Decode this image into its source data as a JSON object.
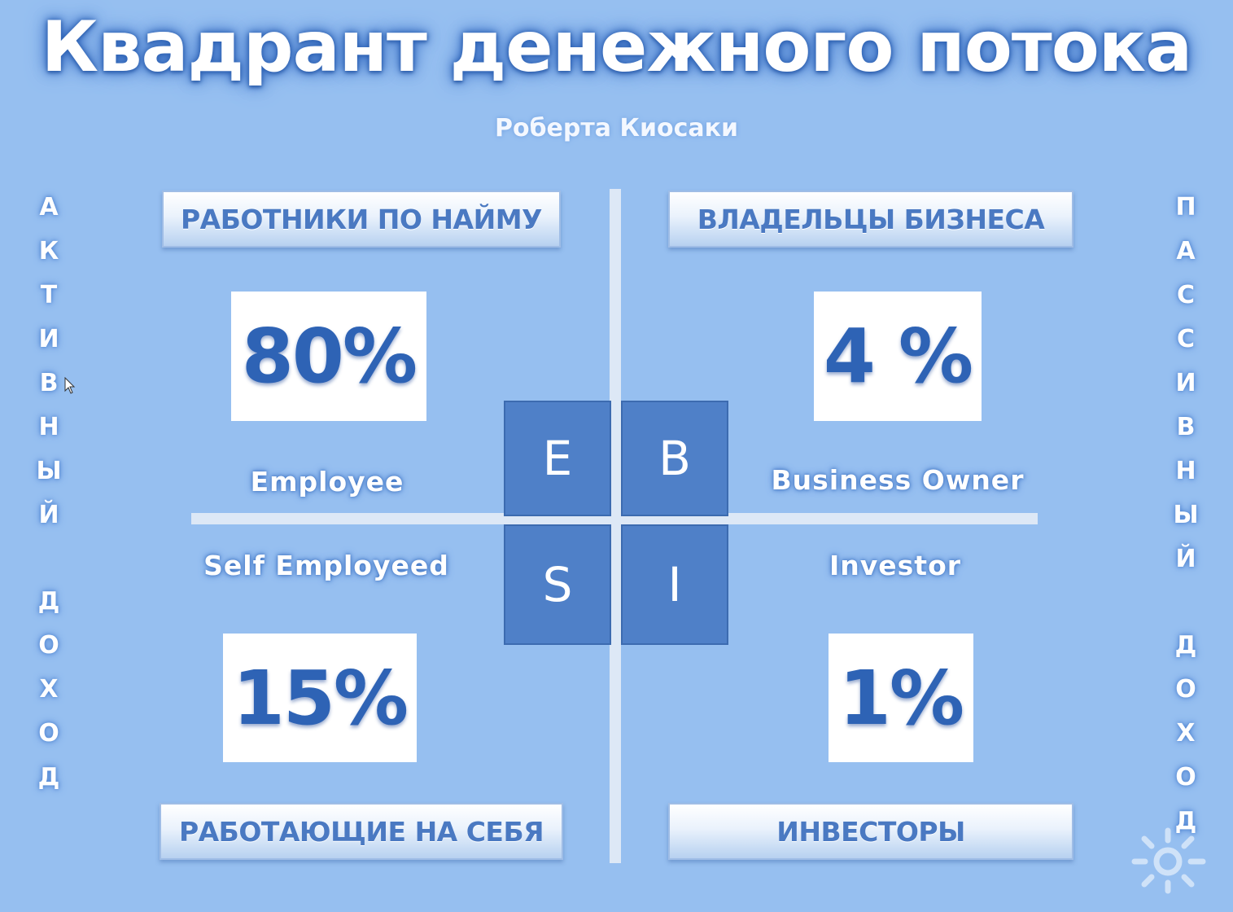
{
  "title": "Квадрант денежного потока",
  "subtitle": "Роберта Киосаки",
  "side_left": {
    "word1": [
      "А",
      "К",
      "Т",
      "И",
      "В",
      "Н",
      "Ы",
      "Й"
    ],
    "word2": [
      "Д",
      "О",
      "Х",
      "О",
      "Д"
    ]
  },
  "side_right": {
    "word1": [
      "П",
      "А",
      "С",
      "С",
      "И",
      "В",
      "Н",
      "Ы",
      "Й"
    ],
    "word2": [
      "Д",
      "О",
      "Х",
      "О",
      "Д"
    ]
  },
  "quadrants": {
    "top_left": {
      "banner": "РАБОТНИКИ ПО НАЙМУ",
      "percent": "80%",
      "name": "Employee",
      "letter": "E"
    },
    "top_right": {
      "banner": "ВЛАДЕЛЬЦЫ БИЗНЕСА",
      "percent": "4 %",
      "name": "Business Owner",
      "letter": "B"
    },
    "bottom_left": {
      "banner": "РАБОТАЮЩИЕ НА СЕБЯ",
      "percent": "15%",
      "name": "Self Employeed",
      "letter": "S"
    },
    "bottom_right": {
      "banner": "ИНВЕСТОРЫ",
      "percent": "1%",
      "name": "Investor",
      "letter": "I"
    }
  },
  "colors": {
    "background": "#96bff0",
    "percent_text": "#2e63b5",
    "banner_text": "#4a79c2",
    "letter_box": "#4f80c8"
  },
  "icons": {
    "cursor": "mouse-pointer-icon",
    "logo": "sun-logo-icon"
  }
}
